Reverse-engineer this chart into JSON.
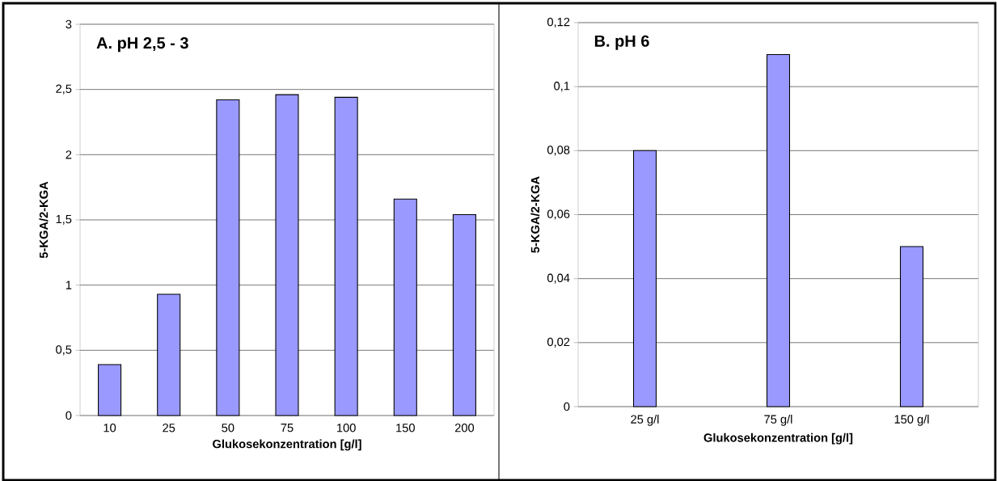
{
  "chart_data": [
    {
      "type": "bar",
      "title": "A. pH 2,5 - 3",
      "xlabel": "Glukosekonzentration [g/l]",
      "ylabel": "5-KGA/2-KGA",
      "categories": [
        "10",
        "25",
        "50",
        "75",
        "100",
        "150",
        "200"
      ],
      "values": [
        0.39,
        0.93,
        2.42,
        2.46,
        2.44,
        1.66,
        1.54
      ],
      "color": "#9999ff",
      "ylim": [
        0,
        3
      ],
      "yticks": [
        0,
        {
          "value": 0.5,
          "label": "0,5"
        },
        1,
        {
          "value": 1.5,
          "label": "1,5"
        },
        2,
        {
          "value": 2.5,
          "label": "2,5"
        },
        3
      ],
      "grid": "y"
    },
    {
      "type": "bar",
      "title": "B. pH 6",
      "xlabel": "Glukosekonzentration [g/l]",
      "ylabel": "5-KGA/2-KGA",
      "categories": [
        "25 g/l",
        "75 g/l",
        "150 g/l"
      ],
      "values": [
        0.08,
        0.11,
        0.05
      ],
      "color": "#9999ff",
      "ylim": [
        0,
        0.12
      ],
      "yticks": [
        0,
        {
          "value": 0.02,
          "label": "0,02"
        },
        {
          "value": 0.04,
          "label": "0,04"
        },
        {
          "value": 0.06,
          "label": "0,06"
        },
        {
          "value": 0.08,
          "label": "0,08"
        },
        {
          "value": 0.1,
          "label": "0,1"
        },
        {
          "value": 0.12,
          "label": "0,12"
        }
      ],
      "grid": "y"
    }
  ]
}
